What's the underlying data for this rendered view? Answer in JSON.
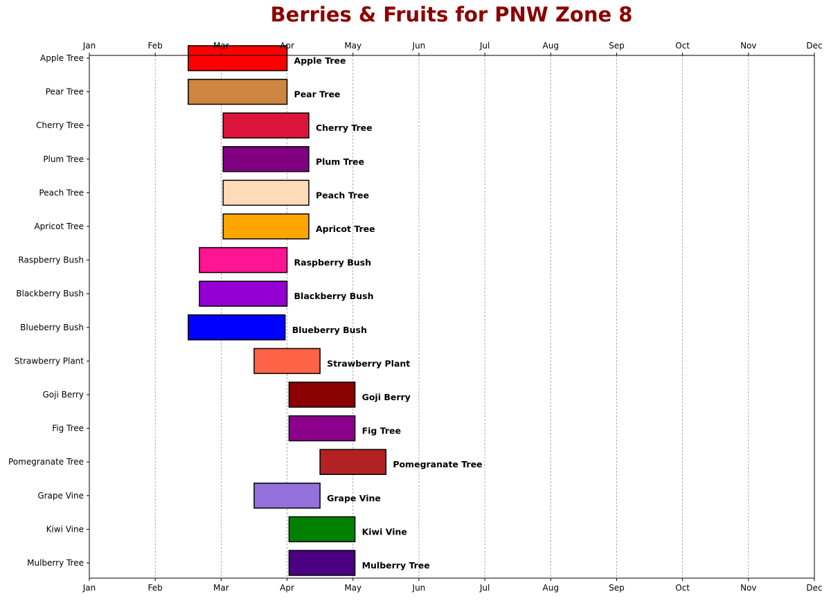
{
  "chart_data": {
    "type": "bar",
    "orientation": "horizontal",
    "title": "Berries & Fruits for PNW Zone 8",
    "xlabel": "",
    "ylabel": "",
    "x_ticks": [
      "Jan",
      "Feb",
      "Mar",
      "Apr",
      "May",
      "Jun",
      "Jul",
      "Aug",
      "Sep",
      "Oct",
      "Nov",
      "Dec"
    ],
    "x_axis_position": "top-and-bottom",
    "xlim": [
      1,
      12
    ],
    "grid": "vertical-dashed",
    "legend": "none",
    "categories": [
      "Apple Tree",
      "Pear Tree",
      "Cherry Tree",
      "Plum Tree",
      "Peach Tree",
      "Apricot Tree",
      "Raspberry Bush",
      "Blackberry Bush",
      "Blueberry Bush",
      "Strawberry Plant",
      "Goji Berry",
      "Fig Tree",
      "Pomegranate Tree",
      "Grape Vine",
      "Kiwi Vine",
      "Mulberry Tree"
    ],
    "bars": [
      {
        "label": "Apple Tree",
        "start": 2.5,
        "end": 4.0,
        "color": "#ff0000"
      },
      {
        "label": "Pear Tree",
        "start": 2.5,
        "end": 4.0,
        "color": "#cd853f"
      },
      {
        "label": "Cherry Tree",
        "start": 3.03,
        "end": 4.33,
        "color": "#dc143c"
      },
      {
        "label": "Plum Tree",
        "start": 3.03,
        "end": 4.33,
        "color": "#800080"
      },
      {
        "label": "Peach Tree",
        "start": 3.03,
        "end": 4.33,
        "color": "#ffdab9"
      },
      {
        "label": "Apricot Tree",
        "start": 3.03,
        "end": 4.33,
        "color": "#ffa500"
      },
      {
        "label": "Raspberry Bush",
        "start": 2.67,
        "end": 4.0,
        "color": "#ff1493"
      },
      {
        "label": "Blackberry Bush",
        "start": 2.67,
        "end": 4.0,
        "color": "#9400d3"
      },
      {
        "label": "Blueberry Bush",
        "start": 2.5,
        "end": 3.97,
        "color": "#0000ff"
      },
      {
        "label": "Strawberry Plant",
        "start": 3.5,
        "end": 4.5,
        "color": "#ff6347"
      },
      {
        "label": "Goji Berry",
        "start": 4.03,
        "end": 5.03,
        "color": "#8b0000"
      },
      {
        "label": "Fig Tree",
        "start": 4.03,
        "end": 5.03,
        "color": "#8b008b"
      },
      {
        "label": "Pomegranate Tree",
        "start": 4.5,
        "end": 5.5,
        "color": "#b22222"
      },
      {
        "label": "Grape Vine",
        "start": 3.5,
        "end": 4.5,
        "color": "#9370db"
      },
      {
        "label": "Kiwi Vine",
        "start": 4.03,
        "end": 5.03,
        "color": "#008000"
      },
      {
        "label": "Mulberry Tree",
        "start": 4.03,
        "end": 5.03,
        "color": "#4b0082"
      }
    ]
  }
}
